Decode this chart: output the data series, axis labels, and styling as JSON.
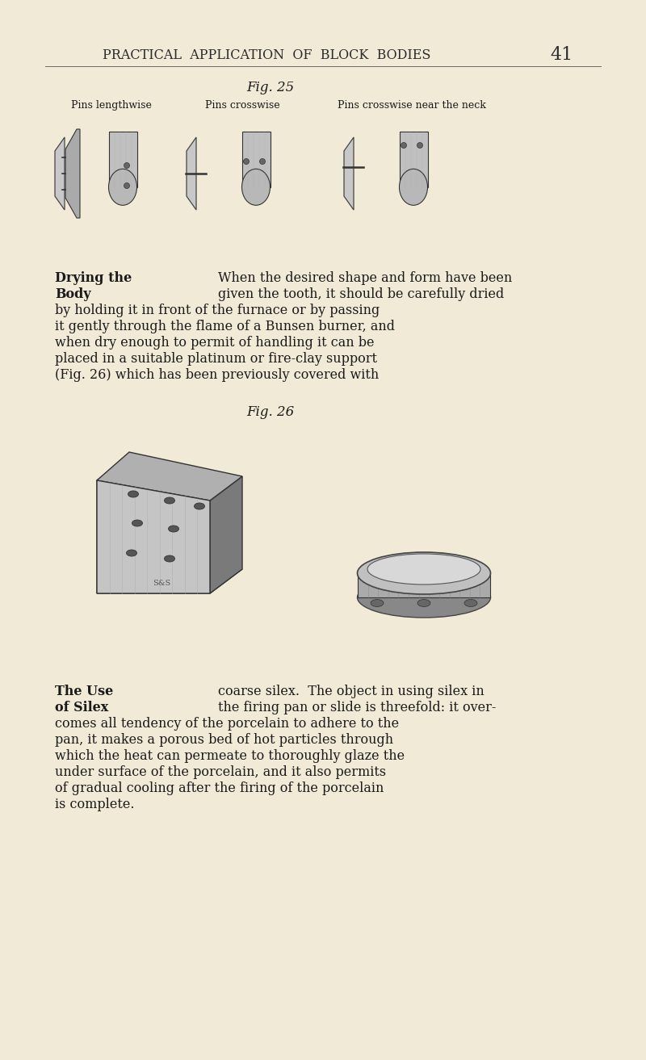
{
  "bg_color": "#f0ead6",
  "page_header": "PRACTICAL  APPLICATION  OF  BLOCK  BODIES",
  "page_number": "41",
  "fig25_label": "Fig. 25",
  "fig25_col1": "Pins lengthwise",
  "fig25_col2": "Pins crosswise",
  "fig25_col3": "Pins crosswise near the neck",
  "fig26_label": "Fig. 26",
  "section1_bold1": "Drying the",
  "section1_bold2": "Body",
  "section2_bold1": "The Use",
  "section2_bold2": "of Silex",
  "text_color": "#1a1a1a",
  "header_color": "#2a2a2a",
  "lines1": [
    [
      270,
      "When the desired shape and form have been"
    ],
    [
      270,
      "given the tooth, it should be carefully dried"
    ],
    [
      68,
      "by holding it in front of the furnace or by passing"
    ],
    [
      68,
      "it gently through the flame of a Bunsen burner, and"
    ],
    [
      68,
      "when dry enough to permit of handling it can be"
    ],
    [
      68,
      "placed in a suitable platinum or fire-clay support"
    ],
    [
      68,
      "(Fig. 26) which has been previously covered with"
    ]
  ],
  "lines2": [
    [
      270,
      "coarse silex.  The object in using silex in"
    ],
    [
      270,
      "the firing pan or slide is threefold: it over-"
    ],
    [
      68,
      "comes all tendency of the porcelain to adhere to the"
    ],
    [
      68,
      "pan, it makes a porous bed of hot particles through"
    ],
    [
      68,
      "which the heat can permeate to thoroughly glaze the"
    ],
    [
      68,
      "under surface of the porcelain, and it also permits"
    ],
    [
      68,
      "of gradual cooling after the firing of the porcelain"
    ],
    [
      68,
      "is complete."
    ]
  ]
}
